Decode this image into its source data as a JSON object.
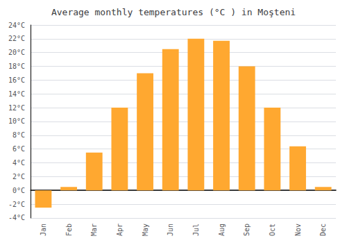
{
  "chart_data": {
    "type": "bar",
    "title": "Average monthly temperatures (°C ) in Moşteni",
    "categories": [
      "Jan",
      "Feb",
      "Mar",
      "Apr",
      "May",
      "Jun",
      "Jul",
      "Aug",
      "Sep",
      "Oct",
      "Nov",
      "Dec"
    ],
    "values": [
      -2.5,
      0.5,
      5.5,
      12.0,
      17.0,
      20.5,
      22.0,
      21.7,
      18.0,
      12.0,
      6.4,
      0.5
    ],
    "color": "#FFA830",
    "ylim": [
      -4,
      24
    ],
    "yticks": [
      {
        "value": -4,
        "label": "-4°C"
      },
      {
        "value": -2,
        "label": "-2°C"
      },
      {
        "value": 0,
        "label": "0°C"
      },
      {
        "value": 2,
        "label": "2°C"
      },
      {
        "value": 4,
        "label": "4°C"
      },
      {
        "value": 6,
        "label": "6°C"
      },
      {
        "value": 8,
        "label": "8°C"
      },
      {
        "value": 10,
        "label": "10°C"
      },
      {
        "value": 12,
        "label": "12°C"
      },
      {
        "value": 14,
        "label": "14°C"
      },
      {
        "value": 16,
        "label": "16°C"
      },
      {
        "value": 18,
        "label": "18°C"
      },
      {
        "value": 20,
        "label": "20°C"
      },
      {
        "value": 22,
        "label": "22°C"
      },
      {
        "value": 24,
        "label": "24°C"
      }
    ],
    "grid": true
  }
}
